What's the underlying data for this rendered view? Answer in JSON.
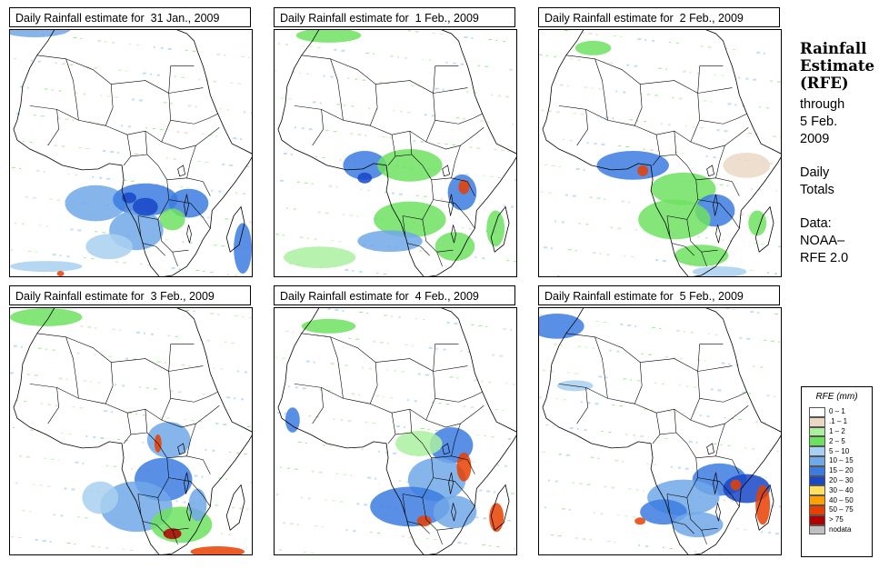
{
  "panels": [
    {
      "title": "Daily Rainfall estimate for  31 Jan., 2009",
      "day": "31-jan"
    },
    {
      "title": "Daily Rainfall estimate for  1 Feb., 2009",
      "day": "1-feb"
    },
    {
      "title": "Daily Rainfall estimate for  2 Feb., 2009",
      "day": "2-feb"
    },
    {
      "title": "Daily Rainfall estimate for  3 Feb., 2009",
      "day": "3-feb"
    },
    {
      "title": "Daily Rainfall estimate for  4 Feb., 2009",
      "day": "4-feb"
    },
    {
      "title": "Daily Rainfall estimate for  5 Feb., 2009",
      "day": "5-feb"
    }
  ],
  "side": {
    "title1": "Rainfall",
    "title2": "Estimate",
    "title3": "(RFE)",
    "through1": "through",
    "through2": "5 Feb.",
    "through3": "2009",
    "daily1": "Daily",
    "daily2": "Totals",
    "data1": "Data:",
    "data2": "NOAA–",
    "data3": "RFE 2.0"
  },
  "legend": {
    "title": "RFE (mm)",
    "items": [
      {
        "label": "0 – 1",
        "color": "#ffffff"
      },
      {
        "label": ".1 – 1",
        "color": "#ead8c4"
      },
      {
        "label": "1 – 2",
        "color": "#aaf0a0"
      },
      {
        "label": "2 – 5",
        "color": "#6ee060"
      },
      {
        "label": "5 – 10",
        "color": "#a8d0f0"
      },
      {
        "label": "10 – 15",
        "color": "#70a8e8"
      },
      {
        "label": "15 – 20",
        "color": "#3c7ce0"
      },
      {
        "label": "20 – 30",
        "color": "#1848c8"
      },
      {
        "label": "30 – 40",
        "color": "#ffe060"
      },
      {
        "label": "40 – 50",
        "color": "#ffa000"
      },
      {
        "label": "50 – 75",
        "color": "#e84000"
      },
      {
        "label": "> 75",
        "color": "#b00000"
      },
      {
        "label": "nodata",
        "color": "#c0c0c0"
      }
    ]
  }
}
